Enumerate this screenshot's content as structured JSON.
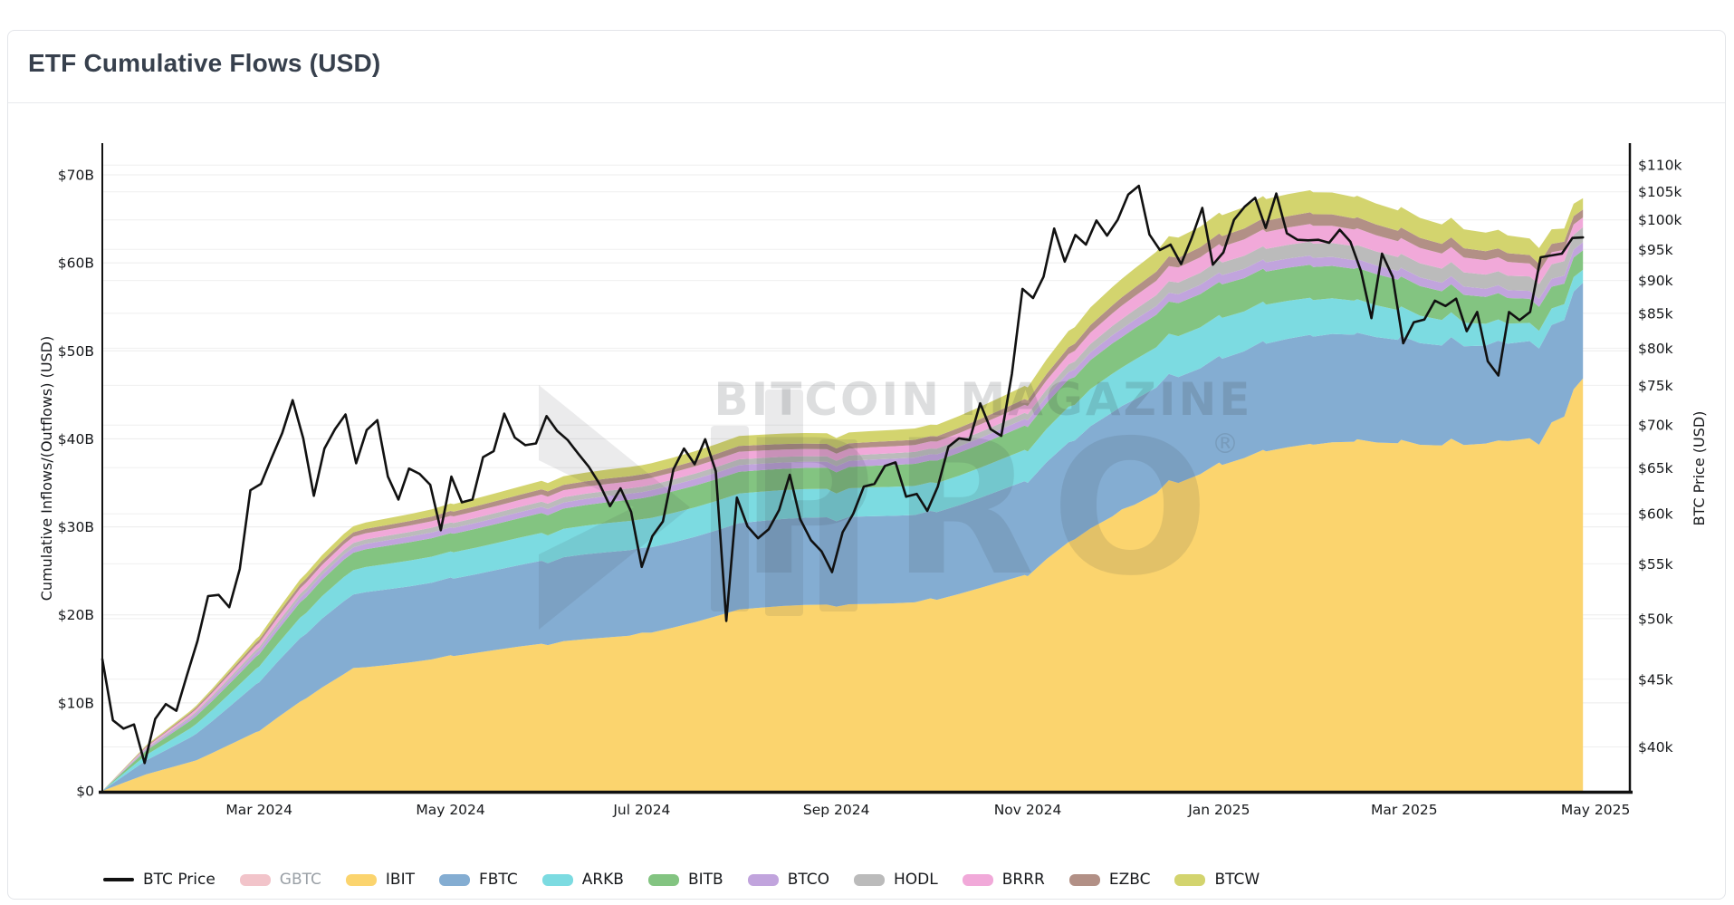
{
  "page": {
    "title": "ETF Cumulative Flows (USD)"
  },
  "watermark": {
    "line1": "BITCOIN MAGAZINE",
    "line2": "PRO",
    "reg": "®"
  },
  "axes": {
    "left": {
      "title": "Cumulative Inflows/(Outflows) (USD)",
      "tick_labels": [
        "$0",
        "$10B",
        "$20B",
        "$30B",
        "$40B",
        "$50B",
        "$60B",
        "$70B"
      ],
      "tick_values_billion": [
        0,
        10,
        20,
        30,
        40,
        50,
        60,
        70
      ]
    },
    "right": {
      "title": "BTC Price (USD)",
      "scale": "log",
      "tick_values_k": [
        40,
        45,
        50,
        55,
        60,
        65,
        70,
        75,
        80,
        85,
        90,
        95,
        100,
        105,
        110
      ]
    },
    "x": {
      "ticks": [
        {
          "label": "Mar 2024",
          "day": 50
        },
        {
          "label": "May 2024",
          "day": 111
        },
        {
          "label": "Jul 2024",
          "day": 172
        },
        {
          "label": "Sep 2024",
          "day": 234
        },
        {
          "label": "Nov 2024",
          "day": 295
        },
        {
          "label": "Jan 2025",
          "day": 356
        },
        {
          "label": "Mar 2025",
          "day": 415
        },
        {
          "label": "May 2025",
          "day": 476
        }
      ]
    }
  },
  "legend": [
    {
      "id": "btc-price",
      "label": "BTC Price",
      "color": "#111111",
      "type": "line",
      "disabled": false
    },
    {
      "id": "gbtc",
      "label": "GBTC",
      "color": "#F2C4CA",
      "type": "box",
      "disabled": true
    },
    {
      "id": "ibit",
      "label": "IBIT",
      "color": "#FBD46E",
      "type": "box",
      "disabled": false
    },
    {
      "id": "fbtc",
      "label": "FBTC",
      "color": "#84ADD2",
      "type": "box",
      "disabled": false
    },
    {
      "id": "arkb",
      "label": "ARKB",
      "color": "#7CDBE1",
      "type": "box",
      "disabled": false
    },
    {
      "id": "bitb",
      "label": "BITB",
      "color": "#83C481",
      "type": "box",
      "disabled": false
    },
    {
      "id": "btco",
      "label": "BTCO",
      "color": "#C1A4DD",
      "type": "box",
      "disabled": false
    },
    {
      "id": "hodl",
      "label": "HODL",
      "color": "#BBBBBB",
      "type": "box",
      "disabled": false
    },
    {
      "id": "brrr",
      "label": "BRRR",
      "color": "#F1A9D9",
      "type": "box",
      "disabled": false
    },
    {
      "id": "ezbc",
      "label": "EZBC",
      "color": "#B29086",
      "type": "box",
      "disabled": false
    },
    {
      "id": "btcw",
      "label": "BTCW",
      "color": "#D3D46E",
      "type": "box",
      "disabled": false
    }
  ],
  "chart_data": {
    "type": "area",
    "title": "ETF Cumulative Flows (USD)",
    "x_unit": "days since 2024-01-11 (chart spans Jan 11 2024 – early May 2025)",
    "left_axis_range_billion": [
      0,
      73.4
    ],
    "right_axis_range_usd_k": [
      36.9,
      113.6
    ],
    "grid": true,
    "legend_position": "bottom",
    "stack_order": [
      "IBIT",
      "FBTC",
      "ARKB",
      "BITB",
      "BTCO",
      "HODL",
      "BRRR",
      "EZBC",
      "BTCW"
    ],
    "hidden_series": [
      "GBTC"
    ],
    "anchor_days": [
      0,
      14,
      30,
      50,
      65,
      80,
      111,
      142,
      172,
      203,
      234,
      264,
      295,
      310,
      325,
      340,
      356,
      370,
      386,
      400,
      414,
      430,
      445,
      458,
      466,
      472
    ],
    "series": [
      {
        "name": "IBIT",
        "color": "#FBD46E",
        "values_billion": [
          0,
          1.9,
          3.5,
          6.8,
          10.5,
          13.9,
          15.4,
          16.6,
          17.9,
          20.6,
          21.0,
          21.8,
          24.4,
          28.5,
          31.8,
          35.0,
          37.2,
          38.3,
          39.0,
          39.5,
          39.8,
          39.7,
          39.6,
          39.8,
          43.0,
          47.2
        ]
      },
      {
        "name": "FBTC",
        "color": "#84ADD2",
        "values_billion": [
          0,
          1.6,
          3.0,
          5.6,
          7.4,
          8.4,
          8.9,
          9.4,
          9.7,
          9.9,
          9.8,
          10.0,
          10.7,
          11.3,
          11.8,
          12.1,
          12.2,
          12.3,
          12.3,
          12.0,
          11.7,
          11.4,
          11.2,
          11.0,
          11.0,
          11.0
        ]
      },
      {
        "name": "ARKB",
        "color": "#7CDBE1",
        "values_billion": [
          0,
          0.6,
          1.1,
          1.8,
          2.4,
          2.8,
          3.0,
          3.2,
          3.3,
          3.4,
          3.2,
          3.3,
          3.6,
          4.1,
          4.4,
          4.6,
          4.7,
          4.5,
          4.2,
          3.8,
          3.3,
          2.8,
          2.4,
          2.0,
          1.8,
          1.5
        ]
      },
      {
        "name": "BITB",
        "color": "#83C481",
        "values_billion": [
          0,
          0.5,
          0.9,
          1.4,
          1.8,
          2.0,
          2.1,
          2.3,
          2.4,
          2.5,
          2.4,
          2.5,
          2.8,
          3.2,
          3.5,
          3.7,
          3.8,
          3.8,
          3.8,
          3.6,
          3.4,
          3.2,
          3.0,
          2.7,
          2.3,
          2.2
        ]
      },
      {
        "name": "BTCO",
        "color": "#C1A4DD",
        "values_billion": [
          0,
          0.15,
          0.3,
          0.45,
          0.55,
          0.6,
          0.65,
          0.7,
          0.7,
          0.75,
          0.7,
          0.7,
          0.75,
          0.85,
          0.95,
          1.0,
          1.05,
          1.05,
          1.05,
          1.0,
          1.0,
          0.95,
          0.9,
          0.9,
          0.9,
          0.9
        ]
      },
      {
        "name": "HODL",
        "color": "#BBBBBB",
        "values_billion": [
          0,
          0.1,
          0.2,
          0.35,
          0.45,
          0.5,
          0.55,
          0.6,
          0.6,
          0.65,
          0.6,
          0.65,
          0.7,
          0.9,
          1.1,
          1.3,
          1.4,
          1.5,
          1.6,
          1.6,
          1.6,
          1.6,
          1.6,
          1.65,
          1.65,
          1.7
        ]
      },
      {
        "name": "BRRR",
        "color": "#F1A9D9",
        "values_billion": [
          0,
          0.15,
          0.3,
          0.5,
          0.65,
          0.7,
          0.75,
          0.8,
          0.8,
          0.85,
          0.8,
          0.8,
          0.9,
          1.2,
          1.5,
          1.7,
          1.8,
          1.9,
          2.0,
          1.9,
          1.8,
          1.7,
          1.6,
          1.4,
          1.3,
          1.1
        ]
      },
      {
        "name": "EZBC",
        "color": "#B29086",
        "values_billion": [
          0,
          0.1,
          0.2,
          0.35,
          0.45,
          0.5,
          0.55,
          0.6,
          0.6,
          0.65,
          0.6,
          0.6,
          0.65,
          0.8,
          0.95,
          1.1,
          1.2,
          1.25,
          1.3,
          1.25,
          1.2,
          1.1,
          1.0,
          0.95,
          0.95,
          0.9
        ]
      },
      {
        "name": "BTCW",
        "color": "#D3D46E",
        "values_billion": [
          0,
          0.1,
          0.2,
          0.4,
          0.6,
          0.7,
          0.85,
          0.95,
          1.05,
          1.15,
          1.2,
          1.3,
          1.5,
          1.9,
          2.1,
          2.3,
          2.4,
          2.5,
          2.5,
          2.4,
          2.3,
          2.2,
          2.1,
          1.8,
          1.5,
          1.3
        ]
      }
    ],
    "btc_price": {
      "name": "BTC Price",
      "color": "#111111",
      "axis": "right",
      "x_start_day": 0,
      "x_end_day": 472,
      "values_usd_k": [
        46.6,
        41.9,
        41.3,
        41.6,
        38.9,
        42.0,
        43.1,
        42.6,
        45.3,
        48.1,
        52.0,
        52.1,
        51.0,
        54.5,
        62.5,
        63.2,
        66.1,
        69.0,
        73.1,
        68.4,
        61.9,
        67.2,
        69.5,
        71.3,
        65.5,
        69.4,
        70.6,
        64.0,
        61.5,
        64.9,
        64.3,
        63.1,
        58.3,
        64.0,
        61.2,
        61.5,
        66.2,
        66.9,
        71.4,
        68.5,
        67.6,
        67.8,
        71.1,
        69.3,
        68.2,
        66.6,
        65.1,
        63.2,
        60.8,
        62.7,
        60.2,
        54.7,
        57.7,
        59.2,
        64.8,
        67.2,
        65.4,
        68.3,
        64.6,
        49.8,
        61.7,
        58.7,
        57.5,
        58.4,
        60.4,
        64.2,
        59.4,
        57.3,
        56.2,
        54.2,
        58.1,
        60.0,
        62.9,
        63.2,
        65.2,
        65.6,
        61.8,
        62.1,
        60.3,
        62.9,
        67.4,
        68.4,
        68.2,
        72.7,
        69.5,
        68.7,
        76.5,
        88.7,
        87.3,
        90.6,
        98.5,
        93.0,
        97.4,
        95.8,
        99.9,
        97.3,
        100.0,
        104.5,
        106.1,
        97.5,
        94.9,
        95.8,
        92.6,
        96.9,
        102.1,
        92.5,
        94.5,
        100.0,
        102.3,
        103.9,
        98.6,
        104.7,
        97.7,
        96.6,
        96.5,
        96.6,
        96.1,
        98.3,
        96.3,
        91.5,
        84.3,
        94.3,
        90.6,
        80.7,
        83.7,
        84.1,
        86.9,
        86.1,
        87.2,
        82.4,
        85.2,
        78.2,
        76.3,
        85.2,
        84.0,
        85.2,
        93.7,
        94.0,
        94.3,
        96.9,
        97.0
      ]
    }
  }
}
